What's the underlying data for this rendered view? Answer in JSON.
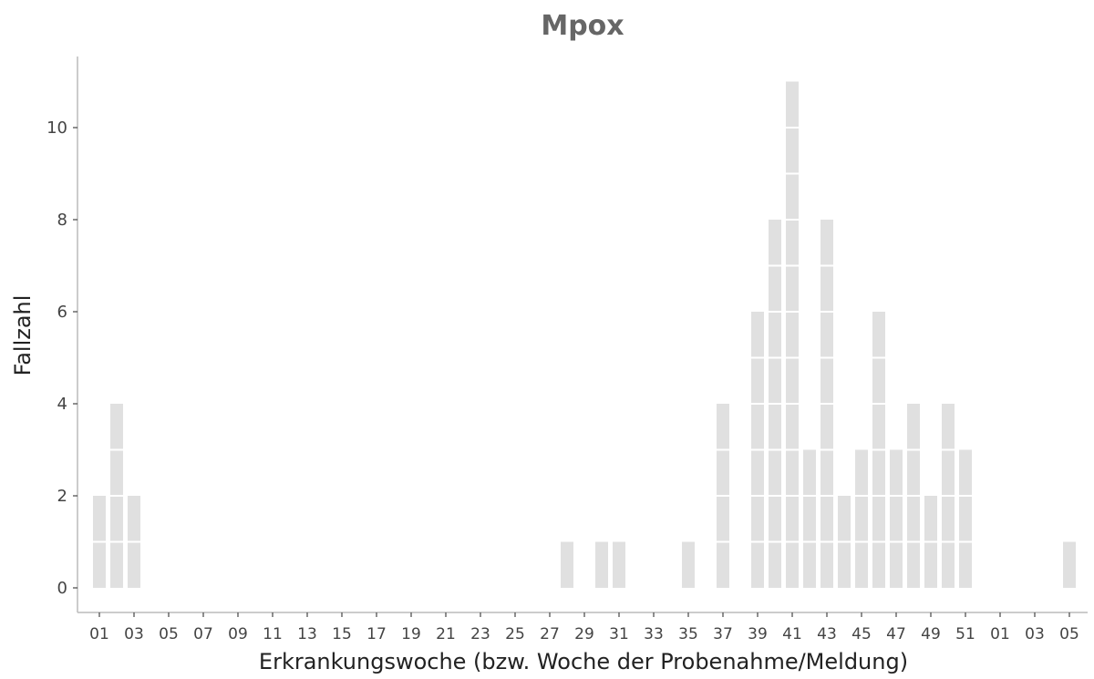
{
  "chart_data": {
    "type": "bar",
    "title": "Mpox",
    "xlabel": "Erkrankungswoche (bzw. Woche der Probenahme/Meldung)",
    "ylabel": "Fallzahl",
    "ylim": [
      0,
      11.5
    ],
    "yticks": [
      "0",
      "2",
      "4",
      "6",
      "8",
      "10"
    ],
    "grid": false,
    "categories": [
      "01",
      "02",
      "03",
      "04",
      "05",
      "06",
      "07",
      "08",
      "09",
      "10",
      "11",
      "12",
      "13",
      "14",
      "15",
      "16",
      "17",
      "18",
      "19",
      "20",
      "21",
      "22",
      "23",
      "24",
      "25",
      "26",
      "27",
      "28",
      "29",
      "30",
      "31",
      "32",
      "33",
      "34",
      "35",
      "36",
      "37",
      "38",
      "39",
      "40",
      "41",
      "42",
      "43",
      "44",
      "45",
      "46",
      "47",
      "48",
      "49",
      "50",
      "51",
      "52",
      "01",
      "02",
      "03",
      "04",
      "05"
    ],
    "xtick_labels": [
      "01",
      "03",
      "05",
      "07",
      "09",
      "11",
      "13",
      "15",
      "17",
      "19",
      "21",
      "23",
      "25",
      "27",
      "29",
      "31",
      "33",
      "35",
      "37",
      "39",
      "41",
      "43",
      "45",
      "47",
      "49",
      "51",
      "01",
      "03",
      "05"
    ],
    "values": [
      2,
      4,
      2,
      0,
      0,
      0,
      0,
      0,
      0,
      0,
      0,
      0,
      0,
      0,
      0,
      0,
      0,
      0,
      0,
      0,
      0,
      0,
      0,
      0,
      0,
      0,
      0,
      1,
      0,
      1,
      1,
      0,
      0,
      0,
      1,
      0,
      4,
      0,
      6,
      8,
      11,
      3,
      8,
      2,
      3,
      6,
      3,
      4,
      2,
      4,
      3,
      0,
      0,
      0,
      0,
      0,
      1
    ],
    "bar_color": "#e0e0e0",
    "separator_color": "#ffffff"
  }
}
